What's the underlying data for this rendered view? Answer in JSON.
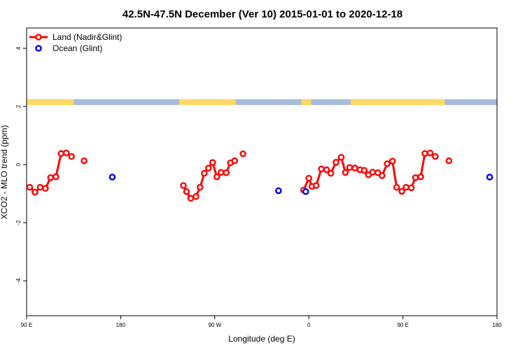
{
  "chart_data": {
    "type": "line",
    "title": "42.5N-47.5N December (Ver 10)   2015-01-01 to 2020-12-18",
    "xlabel": "Longitude (deg E)",
    "ylabel": "XCO2 - MLO trend (ppm)",
    "xlim": [
      90,
      540
    ],
    "ylim": [
      -5.2,
      4.7
    ],
    "x_ticks": [
      {
        "value": 90,
        "label": "90 E"
      },
      {
        "value": 180,
        "label": "180"
      },
      {
        "value": 270,
        "label": "90 W"
      },
      {
        "value": 360,
        "label": "0"
      },
      {
        "value": 450,
        "label": "90 E"
      },
      {
        "value": 540,
        "label": "180"
      }
    ],
    "y_ticks": [
      {
        "value": -4,
        "label": "-4"
      },
      {
        "value": -2,
        "label": "-2"
      },
      {
        "value": 0,
        "label": "0"
      },
      {
        "value": 2,
        "label": "2"
      },
      {
        "value": 4,
        "label": "4"
      }
    ],
    "legend_position": "top-left",
    "series": [
      {
        "name": "Land (Nadir&Glint)",
        "color": "#ff0000",
        "segments": [
          [
            [
              93,
              -0.78
            ],
            [
              98,
              -0.95
            ],
            [
              103,
              -0.78
            ],
            [
              108,
              -0.82
            ],
            [
              113,
              -0.45
            ],
            [
              118,
              -0.42
            ],
            [
              123,
              0.38
            ],
            [
              128,
              0.4
            ],
            [
              133,
              0.28
            ]
          ],
          [
            [
              145,
              0.13
            ]
          ],
          [
            [
              240,
              -0.72
            ],
            [
              243,
              -0.93
            ],
            [
              247,
              -1.16
            ],
            [
              252,
              -1.1
            ],
            [
              256,
              -0.78
            ],
            [
              260,
              -0.3
            ],
            [
              264,
              -0.12
            ],
            [
              268,
              0.07
            ],
            [
              272,
              -0.42
            ],
            [
              276,
              -0.27
            ],
            [
              281,
              -0.28
            ],
            [
              285,
              0.06
            ],
            [
              289,
              0.13
            ]
          ],
          [
            [
              297,
              0.37
            ]
          ],
          [
            [
              355,
              -0.88
            ],
            [
              360,
              -0.47
            ],
            [
              363,
              -0.75
            ],
            [
              367,
              -0.72
            ],
            [
              372,
              -0.15
            ],
            [
              377,
              -0.18
            ],
            [
              381,
              -0.3
            ],
            [
              386,
              0.08
            ],
            [
              391,
              0.25
            ],
            [
              395,
              -0.27
            ],
            [
              399,
              -0.1
            ],
            [
              404,
              -0.12
            ],
            [
              409,
              -0.18
            ],
            [
              413,
              -0.2
            ],
            [
              417,
              -0.35
            ],
            [
              421,
              -0.26
            ],
            [
              426,
              -0.28
            ],
            [
              430,
              -0.38
            ],
            [
              435,
              0.03
            ],
            [
              440,
              0.12
            ],
            [
              444,
              -0.78
            ],
            [
              449,
              -0.92
            ],
            [
              453,
              -0.78
            ],
            [
              458,
              -0.8
            ],
            [
              462,
              -0.45
            ],
            [
              467,
              -0.42
            ],
            [
              471,
              0.38
            ],
            [
              476,
              0.4
            ],
            [
              481,
              0.28
            ]
          ],
          [
            [
              494,
              0.13
            ]
          ]
        ]
      },
      {
        "name": "Ocean (Glint)",
        "color": "#0000ee",
        "points": [
          [
            172,
            -0.43
          ],
          [
            331,
            -0.9
          ],
          [
            357,
            -0.93
          ],
          [
            533,
            -0.43
          ]
        ]
      }
    ],
    "land_ocean_band": {
      "y_range": [
        2.05,
        2.25
      ],
      "land_color": "#ffd966",
      "ocean_color": "#a7bcd8",
      "land_intervals": [
        [
          90,
          135
        ],
        [
          236,
          290
        ],
        [
          353,
          362
        ],
        [
          400,
          490
        ]
      ]
    }
  }
}
